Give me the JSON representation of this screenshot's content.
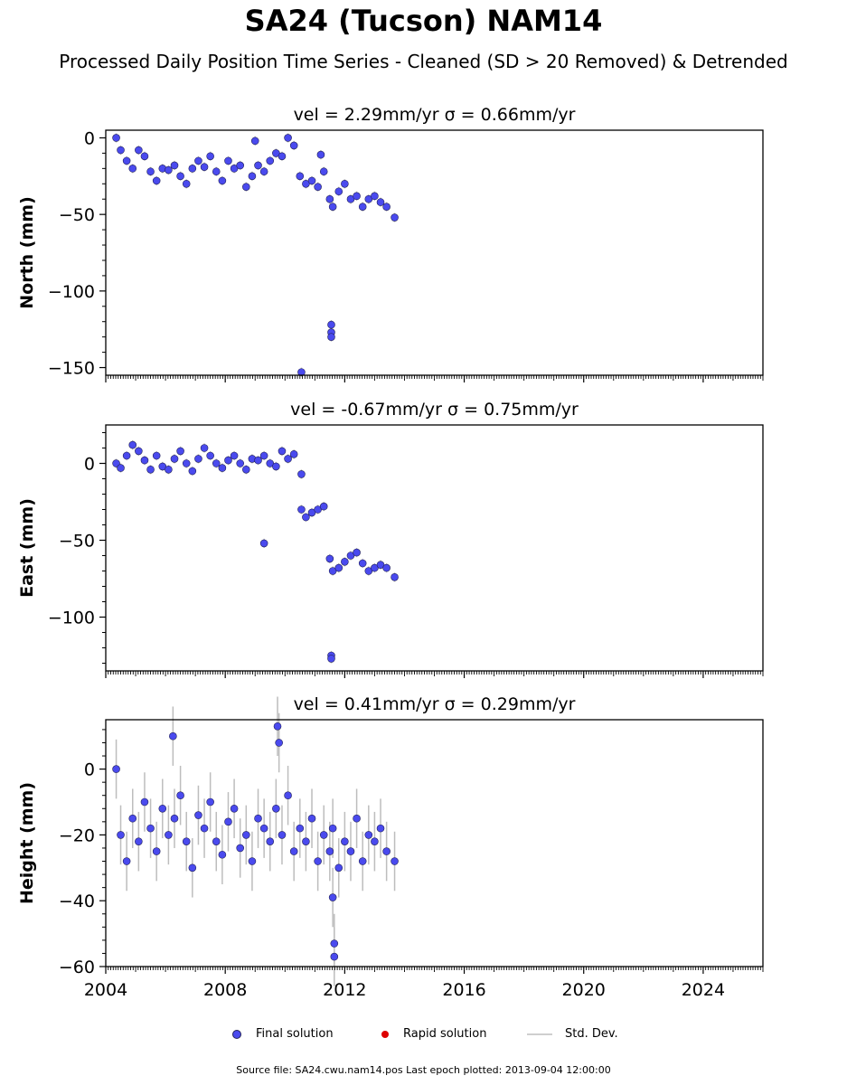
{
  "header": {
    "title": "SA24 (Tucson) NAM14",
    "subtitle": "Processed Daily Position Time Series - Cleaned (SD > 20 Removed) & Detrended"
  },
  "legend": {
    "final": "Final solution",
    "rapid": "Rapid solution",
    "std": "Std. Dev."
  },
  "footer": {
    "source": "Source file: SA24.cwu.nam14.pos  Last epoch plotted: 2013-09-04 12:00:00"
  },
  "colors": {
    "final": "#4a4aee",
    "final_edge": "#22225a",
    "rapid": "#dd0000",
    "std": "#bdbdbd"
  },
  "chart_data": [
    {
      "type": "scatter",
      "title": "vel = 2.29mm/yr   σ = 0.66mm/yr",
      "ylabel": "North (mm)",
      "xlim": [
        2004,
        2026
      ],
      "ylim": [
        -155,
        5
      ],
      "yticks": [
        0,
        -50,
        -100,
        -150
      ],
      "xticks": [
        2004,
        2008,
        2012,
        2016,
        2020,
        2024
      ],
      "series": [
        {
          "name": "Final solution",
          "x": [
            2004.35,
            2004.5,
            2004.7,
            2004.9,
            2005.1,
            2005.3,
            2005.5,
            2005.7,
            2005.9,
            2006.1,
            2006.3,
            2006.5,
            2006.7,
            2006.9,
            2007.1,
            2007.3,
            2007.5,
            2007.7,
            2007.9,
            2008.1,
            2008.3,
            2008.5,
            2008.7,
            2008.9,
            2009.1,
            2009.3,
            2009.5,
            2009.7,
            2009.9,
            2010.1,
            2010.3,
            2010.5,
            2010.7,
            2010.9,
            2011.1,
            2011.3,
            2011.5,
            2011.6,
            2011.8,
            2012.0,
            2012.2,
            2012.4,
            2012.6,
            2012.8,
            2013.0,
            2013.2,
            2013.4,
            2013.67,
            2010.55,
            2011.55,
            2011.55,
            2011.55,
            2009.0,
            2011.2
          ],
          "y": [
            0,
            -8,
            -15,
            -20,
            -8,
            -12,
            -22,
            -28,
            -20,
            -21,
            -18,
            -25,
            -30,
            -20,
            -15,
            -19,
            -12,
            -22,
            -28,
            -15,
            -20,
            -18,
            -32,
            -25,
            -18,
            -22,
            -15,
            -10,
            -12,
            0,
            -5,
            -25,
            -30,
            -28,
            -32,
            -22,
            -40,
            -45,
            -35,
            -30,
            -40,
            -38,
            -45,
            -40,
            -38,
            -42,
            -45,
            -52,
            -153,
            -122,
            -127,
            -130,
            -2,
            -11
          ]
        }
      ]
    },
    {
      "type": "scatter",
      "title": "vel = -0.67mm/yr   σ = 0.75mm/yr",
      "ylabel": "East (mm)",
      "xlim": [
        2004,
        2026
      ],
      "ylim": [
        -135,
        25
      ],
      "yticks": [
        0,
        -50,
        -100
      ],
      "xticks": [
        2004,
        2008,
        2012,
        2016,
        2020,
        2024
      ],
      "series": [
        {
          "name": "Final solution",
          "x": [
            2004.35,
            2004.5,
            2004.7,
            2004.9,
            2005.1,
            2005.3,
            2005.5,
            2005.7,
            2005.9,
            2006.1,
            2006.3,
            2006.5,
            2006.7,
            2006.9,
            2007.1,
            2007.3,
            2007.5,
            2007.7,
            2007.9,
            2008.1,
            2008.3,
            2008.5,
            2008.7,
            2008.9,
            2009.1,
            2009.3,
            2009.5,
            2009.7,
            2009.9,
            2010.1,
            2010.3,
            2010.55,
            2010.7,
            2010.9,
            2011.1,
            2011.3,
            2011.5,
            2011.6,
            2011.8,
            2012.0,
            2012.2,
            2012.4,
            2012.6,
            2012.8,
            2013.0,
            2013.2,
            2013.4,
            2013.67,
            2010.55,
            2009.3,
            2011.55,
            2011.55
          ],
          "y": [
            0,
            -3,
            5,
            12,
            8,
            2,
            -4,
            5,
            -2,
            -4,
            3,
            8,
            0,
            -5,
            3,
            10,
            5,
            0,
            -3,
            2,
            5,
            0,
            -4,
            3,
            2,
            5,
            0,
            -2,
            8,
            3,
            6,
            -30,
            -35,
            -32,
            -30,
            -28,
            -62,
            -70,
            -68,
            -64,
            -60,
            -58,
            -65,
            -70,
            -68,
            -66,
            -68,
            -74,
            -7,
            -52,
            -125,
            -127
          ]
        }
      ]
    },
    {
      "type": "scatter",
      "title": "vel = 0.41mm/yr   σ = 0.29mm/yr",
      "ylabel": "Height (mm)",
      "xlim": [
        2004,
        2026
      ],
      "ylim": [
        -60,
        15
      ],
      "yticks": [
        0,
        -20,
        -40,
        -60
      ],
      "xticks": [
        2004,
        2008,
        2012,
        2016,
        2020,
        2024
      ],
      "series": [
        {
          "name": "Final solution",
          "x": [
            2004.35,
            2004.5,
            2004.7,
            2004.9,
            2005.1,
            2005.3,
            2005.5,
            2005.7,
            2005.9,
            2006.1,
            2006.3,
            2006.5,
            2006.7,
            2006.9,
            2007.1,
            2007.3,
            2007.5,
            2007.7,
            2007.9,
            2008.1,
            2008.3,
            2008.5,
            2008.7,
            2008.9,
            2009.1,
            2009.3,
            2009.5,
            2009.7,
            2009.9,
            2010.1,
            2010.3,
            2010.5,
            2010.7,
            2010.9,
            2011.1,
            2011.3,
            2011.5,
            2011.6,
            2011.8,
            2012.0,
            2012.2,
            2012.4,
            2012.6,
            2012.8,
            2013.0,
            2013.2,
            2013.4,
            2013.67,
            2006.25,
            2009.75,
            2009.8,
            2011.65,
            2011.65,
            2011.6
          ],
          "y": [
            0,
            -20,
            -28,
            -15,
            -22,
            -10,
            -18,
            -25,
            -12,
            -20,
            -15,
            -8,
            -22,
            -30,
            -14,
            -18,
            -10,
            -22,
            -26,
            -16,
            -12,
            -24,
            -20,
            -28,
            -15,
            -18,
            -22,
            -12,
            -20,
            -8,
            -25,
            -18,
            -22,
            -15,
            -28,
            -20,
            -25,
            -18,
            -30,
            -22,
            -25,
            -15,
            -28,
            -20,
            -22,
            -18,
            -25,
            -28,
            10,
            13,
            8,
            -53,
            -57,
            -39
          ]
        }
      ]
    }
  ]
}
